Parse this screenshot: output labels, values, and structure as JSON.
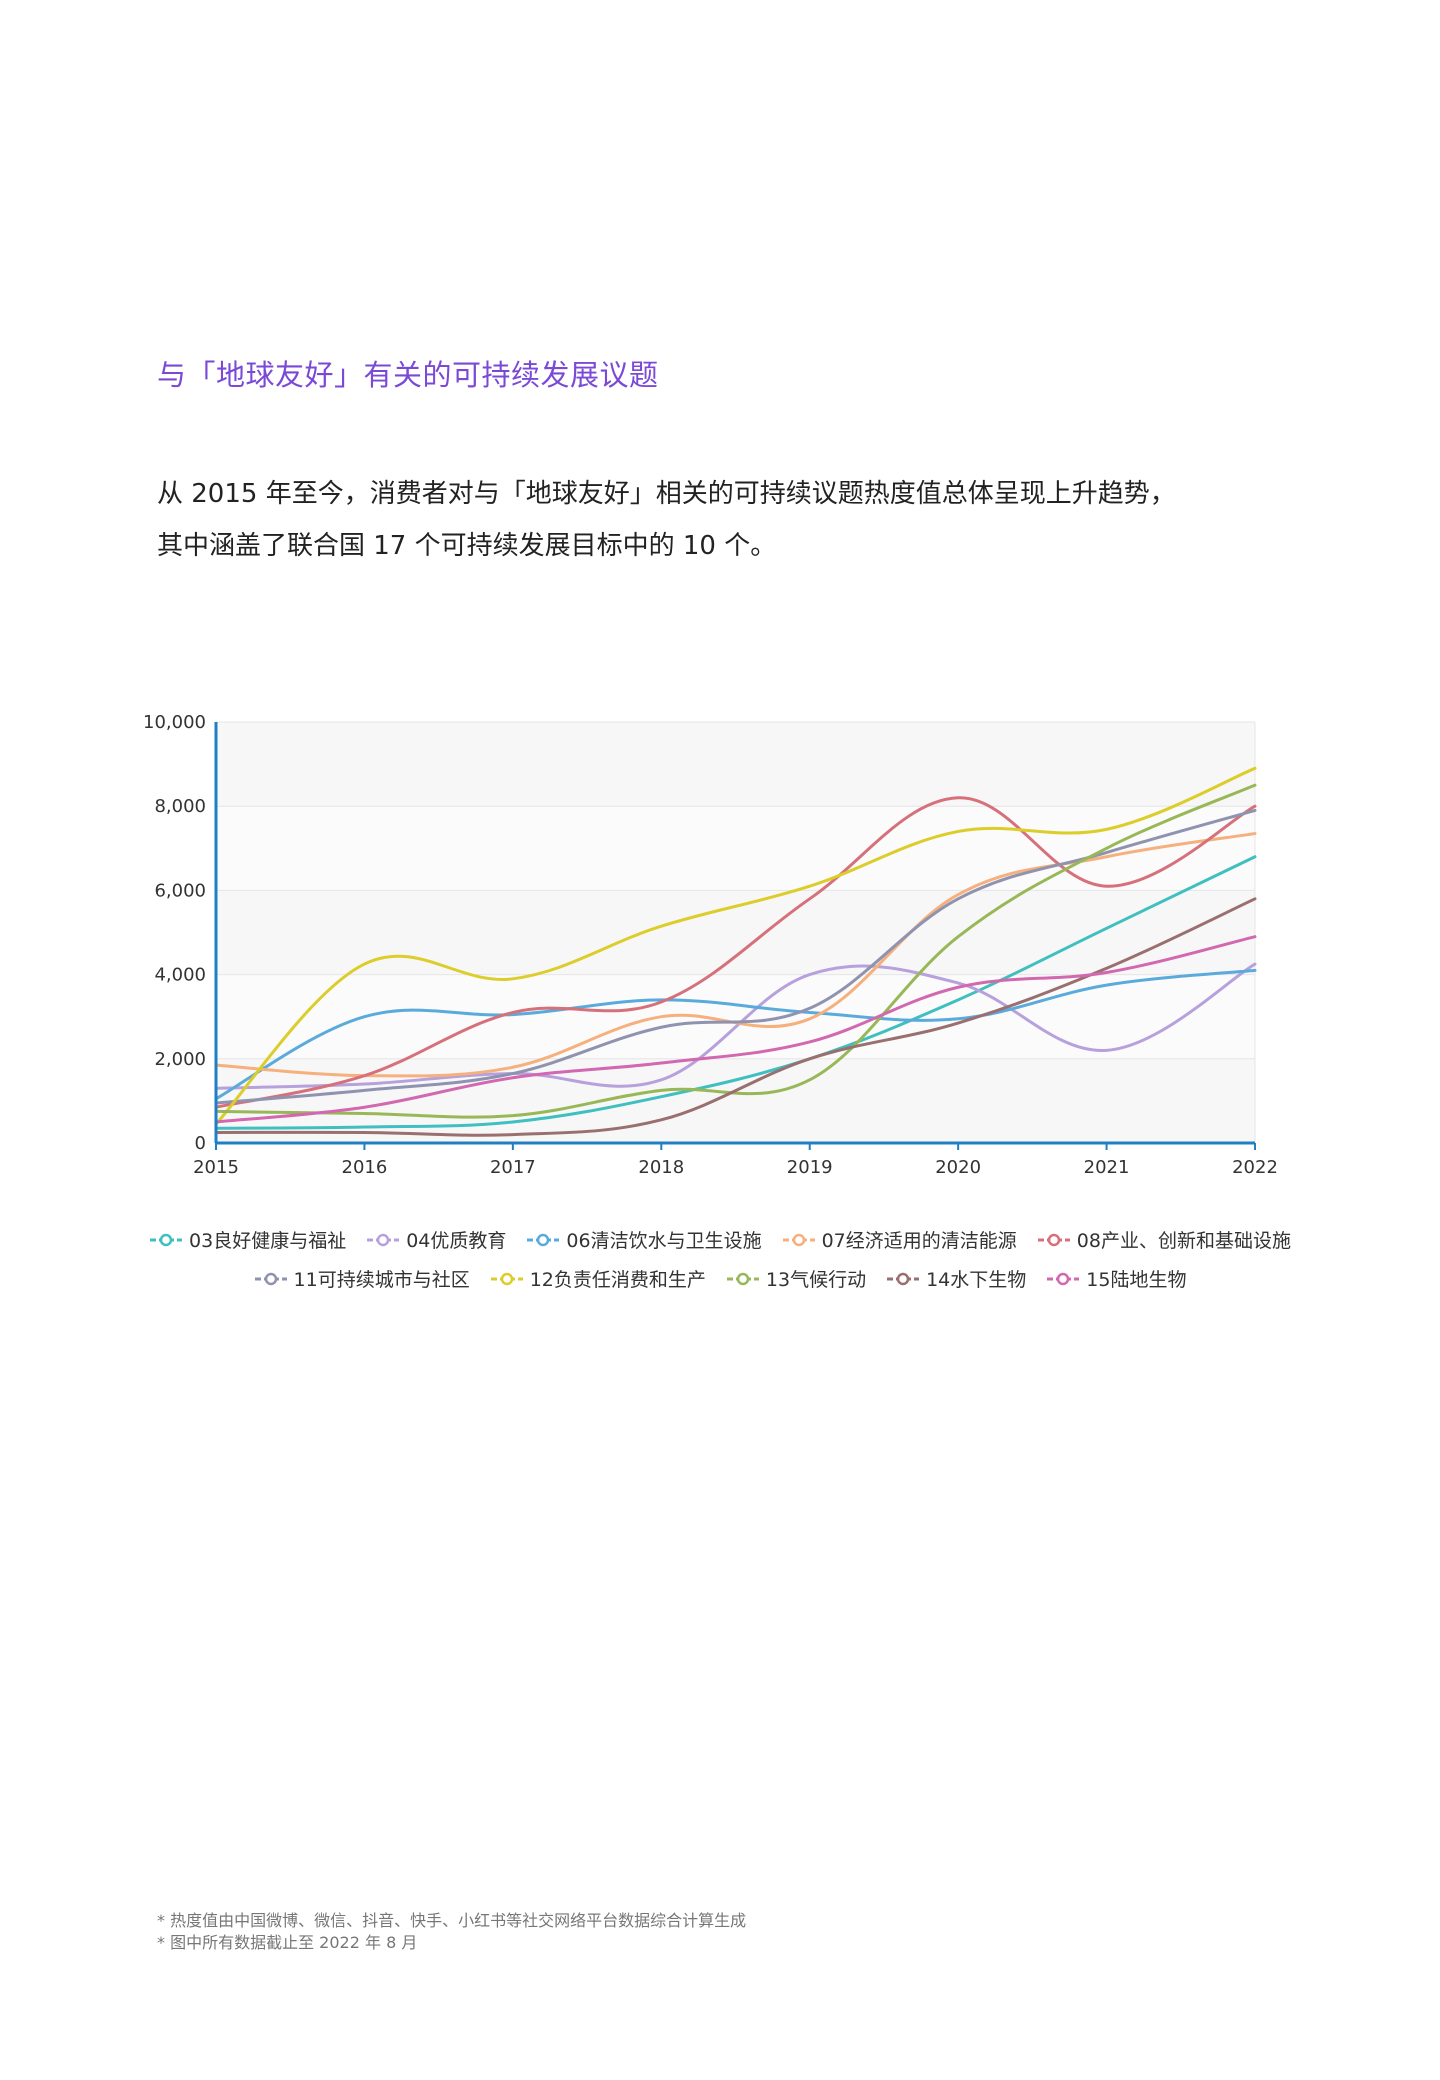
{
  "heading": "与「地球友好」有关的可持续发展议题",
  "intro": {
    "line1": "从 2015 年至今，消费者对与「地球友好」相关的可持续议题热度值总体呈现上升趋势，",
    "line2": "其中涵盖了联合国 17 个可持续发展目标中的 10 个。"
  },
  "notes": [
    "* 热度值由中国微博、微信、抖音、快手、小红书等社交网络平台数据综合计算生成",
    "* 图中所有数据截止至 2022 年 8 月"
  ],
  "chart_data": {
    "type": "line",
    "x": [
      2015,
      2016,
      2017,
      2018,
      2019,
      2020,
      2021,
      2022
    ],
    "xtick_labels": [
      "2015",
      "2016",
      "2017",
      "2018",
      "2019",
      "2020",
      "2021",
      "2022"
    ],
    "ylim": [
      0,
      10000
    ],
    "yticks": [
      0,
      2000,
      4000,
      6000,
      8000,
      10000
    ],
    "ytick_labels": [
      "0",
      "2,000",
      "4,000",
      "6,000",
      "8,000",
      "10,000"
    ],
    "legend_position": "bottom",
    "grid": "horizontal",
    "series": [
      {
        "name": "03良好健康与福祉",
        "color": "#3fbfbf",
        "values": [
          350,
          380,
          500,
          1100,
          2000,
          3400,
          5100,
          6800
        ]
      },
      {
        "name": "04优质教育",
        "color": "#b7a1dd",
        "values": [
          1300,
          1400,
          1650,
          1500,
          4000,
          3800,
          2200,
          4250
        ]
      },
      {
        "name": "06清洁饮水与卫生设施",
        "color": "#5aabdc",
        "values": [
          1050,
          3000,
          3050,
          3400,
          3100,
          2950,
          3750,
          4100
        ]
      },
      {
        "name": "07经济适用的清洁能源",
        "color": "#f5b07e",
        "values": [
          1850,
          1600,
          1800,
          3000,
          2950,
          5900,
          6800,
          7350
        ]
      },
      {
        "name": "08产业、创新和基础设施",
        "color": "#d6707a",
        "values": [
          850,
          1600,
          3100,
          3350,
          5800,
          8200,
          6100,
          8000
        ]
      },
      {
        "name": "11可持续城市与社区",
        "color": "#8f93b0",
        "values": [
          950,
          1250,
          1650,
          2750,
          3200,
          5800,
          6900,
          7900
        ]
      },
      {
        "name": "12负责任消费和生产",
        "color": "#dccd2a",
        "values": [
          450,
          4250,
          3900,
          5150,
          6100,
          7400,
          7450,
          8900
        ]
      },
      {
        "name": "13气候行动",
        "color": "#98b858",
        "values": [
          750,
          700,
          650,
          1250,
          1500,
          4900,
          7000,
          8500
        ]
      },
      {
        "name": "14水下生物",
        "color": "#9a6f6f",
        "values": [
          250,
          250,
          200,
          550,
          2000,
          2850,
          4150,
          5800
        ]
      },
      {
        "name": "15陆地生物",
        "color": "#d268b0",
        "values": [
          500,
          850,
          1550,
          1900,
          2400,
          3700,
          4050,
          4900
        ]
      }
    ]
  }
}
